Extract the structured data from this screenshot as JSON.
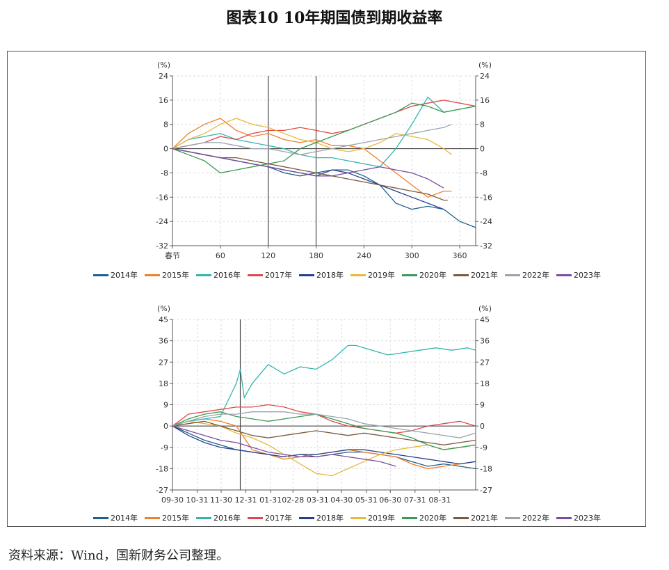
{
  "title": "图表10  10年期国债到期收益率",
  "source": "资料来源：Wind，国新财务公司整理。",
  "colors": {
    "2014年": "#1f5f8b",
    "2015年": "#f07f2a",
    "2016年": "#33b5ad",
    "2017年": "#e04848",
    "2018年": "#24408e",
    "2019年": "#e8b93a",
    "2020年": "#3a9a55",
    "2021年": "#7a5a3c",
    "2022年": "#9aa3ad",
    "2023年": "#7b4ca0"
  },
  "chart_data": [
    {
      "type": "line",
      "unit_left": "(%)",
      "unit_right": "(%)",
      "ylim": [
        -32,
        24
      ],
      "yticks": [
        "-32",
        "-24",
        "-16",
        "-8",
        "0",
        "8",
        "16",
        "24"
      ],
      "xlim": [
        0,
        380
      ],
      "xticks": [
        {
          "v": 0,
          "label": "春节"
        },
        {
          "v": 60,
          "label": "60"
        },
        {
          "v": 120,
          "label": "120"
        },
        {
          "v": 180,
          "label": "180"
        },
        {
          "v": 240,
          "label": "240"
        },
        {
          "v": 300,
          "label": "300"
        },
        {
          "v": 360,
          "label": "360"
        }
      ],
      "vlines": [
        120,
        180
      ],
      "grid": true,
      "legend": "bottom",
      "series": [
        {
          "name": "2014年",
          "x": [
            0,
            20,
            40,
            60,
            80,
            100,
            120,
            140,
            160,
            180,
            200,
            220,
            240,
            260,
            280,
            300,
            320,
            340,
            360,
            380
          ],
          "values": [
            0,
            -1,
            -2,
            -3,
            -4,
            -5,
            -6,
            -8,
            -9,
            -8,
            -7,
            -7,
            -9,
            -12,
            -18,
            -20,
            -19,
            -20,
            -24,
            -26
          ]
        },
        {
          "name": "2015年",
          "x": [
            0,
            20,
            40,
            60,
            80,
            100,
            120,
            140,
            160,
            180,
            200,
            220,
            240,
            260,
            280,
            300,
            320,
            340,
            350
          ],
          "values": [
            0,
            5,
            8,
            10,
            6,
            4,
            5,
            3,
            2,
            3,
            1,
            1,
            0,
            -4,
            -8,
            -12,
            -16,
            -14,
            -14
          ]
        },
        {
          "name": "2016年",
          "x": [
            0,
            20,
            40,
            60,
            80,
            100,
            120,
            140,
            160,
            180,
            200,
            220,
            240,
            260,
            280,
            300,
            320,
            340,
            360,
            380
          ],
          "values": [
            0,
            3,
            4,
            5,
            3,
            2,
            1,
            0,
            -2,
            -3,
            -3,
            -4,
            -5,
            -6,
            0,
            8,
            17,
            12,
            13,
            14
          ]
        },
        {
          "name": "2017年",
          "x": [
            0,
            20,
            40,
            60,
            80,
            100,
            120,
            140,
            160,
            180,
            200,
            220,
            240,
            260,
            280,
            300,
            320,
            340,
            360,
            380
          ],
          "values": [
            0,
            1,
            2,
            4,
            3,
            5,
            6,
            6,
            7,
            6,
            5,
            6,
            8,
            10,
            12,
            14,
            15,
            16,
            15,
            14
          ]
        },
        {
          "name": "2018年",
          "x": [
            0,
            20,
            40,
            60,
            80,
            100,
            120,
            140,
            160,
            180,
            200,
            220,
            240,
            260,
            280,
            300,
            320,
            340
          ],
          "values": [
            0,
            -1,
            -2,
            -3,
            -4,
            -5,
            -6,
            -7,
            -8,
            -9,
            -7,
            -8,
            -10,
            -12,
            -14,
            -16,
            -18,
            -20
          ]
        },
        {
          "name": "2019年",
          "x": [
            0,
            20,
            40,
            60,
            80,
            100,
            120,
            140,
            160,
            180,
            200,
            220,
            240,
            260,
            280,
            300,
            320,
            340,
            350
          ],
          "values": [
            0,
            3,
            5,
            8,
            10,
            8,
            7,
            5,
            3,
            2,
            0,
            -1,
            0,
            2,
            5,
            4,
            3,
            0,
            -2
          ]
        },
        {
          "name": "2020年",
          "x": [
            0,
            20,
            40,
            60,
            80,
            100,
            120,
            140,
            160,
            180,
            200,
            220,
            240,
            260,
            280,
            300,
            320,
            340,
            360,
            380
          ],
          "values": [
            0,
            -2,
            -4,
            -8,
            -7,
            -6,
            -5,
            -4,
            0,
            2,
            4,
            6,
            8,
            10,
            12,
            15,
            14,
            12,
            13,
            14
          ]
        },
        {
          "name": "2021年",
          "x": [
            0,
            20,
            40,
            60,
            80,
            100,
            120,
            140,
            160,
            180,
            200,
            220,
            240,
            260,
            280,
            300,
            320,
            340,
            345
          ],
          "values": [
            0,
            -1,
            -2,
            -3,
            -3,
            -4,
            -5,
            -6,
            -7,
            -8,
            -9,
            -10,
            -11,
            -12,
            -13,
            -14,
            -15,
            -17,
            -17
          ]
        },
        {
          "name": "2022年",
          "x": [
            0,
            20,
            40,
            60,
            80,
            100,
            120,
            140,
            160,
            180,
            200,
            220,
            240,
            260,
            280,
            300,
            320,
            340,
            350
          ],
          "values": [
            0,
            1,
            2,
            2,
            1,
            0,
            0,
            -1,
            -2,
            -1,
            0,
            1,
            2,
            3,
            4,
            5,
            6,
            7,
            8
          ]
        },
        {
          "name": "2023年",
          "x": [
            0,
            20,
            40,
            60,
            80,
            100,
            120,
            140,
            160,
            180,
            200,
            220,
            240,
            260,
            280,
            300,
            320,
            340
          ],
          "values": [
            0,
            -1,
            -2,
            -3,
            -4,
            -5,
            -6,
            -7,
            -8,
            -9,
            -9,
            -8,
            -7,
            -6,
            -7,
            -8,
            -10,
            -13
          ]
        }
      ]
    },
    {
      "type": "line",
      "unit_left": "(%)",
      "unit_right": "(%)",
      "ylim": [
        -27,
        45
      ],
      "yticks": [
        "-27",
        "-18",
        "-9",
        "0",
        "9",
        "18",
        "27",
        "36",
        "45"
      ],
      "xlim": [
        0,
        380
      ],
      "xticks": [
        {
          "v": 0,
          "label": "09-30"
        },
        {
          "v": 31,
          "label": "10-31"
        },
        {
          "v": 61,
          "label": "11-30"
        },
        {
          "v": 92,
          "label": "12-31"
        },
        {
          "v": 123,
          "label": "01-31"
        },
        {
          "v": 151,
          "label": "02-28"
        },
        {
          "v": 182,
          "label": "03-31"
        },
        {
          "v": 212,
          "label": "04-30"
        },
        {
          "v": 243,
          "label": "05-31"
        },
        {
          "v": 273,
          "label": "06-30"
        },
        {
          "v": 304,
          "label": "07-31"
        },
        {
          "v": 335,
          "label": "08-31"
        }
      ],
      "vlines": [
        85
      ],
      "grid": true,
      "legend": "bottom",
      "series": [
        {
          "name": "2014年",
          "x": [
            0,
            20,
            40,
            60,
            80,
            100,
            120,
            140,
            160,
            180,
            200,
            220,
            240,
            260,
            280,
            300,
            320,
            340,
            360,
            380
          ],
          "values": [
            0,
            -3,
            -6,
            -8,
            -10,
            -11,
            -12,
            -13,
            -12,
            -13,
            -12,
            -11,
            -11,
            -12,
            -13,
            -15,
            -17,
            -16,
            -17,
            -18
          ]
        },
        {
          "name": "2015年",
          "x": [
            0,
            20,
            40,
            60,
            80,
            100,
            120,
            140,
            160,
            180,
            200,
            220,
            240,
            260,
            280,
            300,
            320,
            340,
            360,
            380
          ],
          "values": [
            0,
            2,
            3,
            2,
            0,
            -10,
            -12,
            -14,
            -13,
            -12,
            -11,
            -10,
            -11,
            -12,
            -13,
            -16,
            -18,
            -17,
            -16,
            -15
          ]
        },
        {
          "name": "2016年",
          "x": [
            0,
            20,
            40,
            60,
            80,
            85,
            90,
            100,
            120,
            140,
            160,
            180,
            200,
            220,
            230,
            250,
            270,
            290,
            310,
            330,
            350,
            370,
            380
          ],
          "values": [
            0,
            2,
            3,
            4,
            18,
            24,
            12,
            18,
            26,
            22,
            25,
            24,
            28,
            34,
            34,
            32,
            30,
            31,
            32,
            33,
            32,
            33,
            32
          ]
        },
        {
          "name": "2017年",
          "x": [
            0,
            20,
            40,
            60,
            80,
            100,
            120,
            140,
            160,
            180,
            200,
            220,
            240,
            260,
            280,
            300,
            320,
            340,
            360,
            380
          ],
          "values": [
            0,
            5,
            6,
            7,
            8,
            8,
            9,
            8,
            6,
            5,
            2,
            0,
            -1,
            -2,
            -3,
            -2,
            0,
            1,
            2,
            0
          ]
        },
        {
          "name": "2018年",
          "x": [
            0,
            20,
            40,
            60,
            80,
            100,
            120,
            140,
            160,
            180,
            200,
            220,
            240,
            260,
            280,
            300,
            320,
            340,
            360,
            380
          ],
          "values": [
            0,
            -4,
            -7,
            -9,
            -10,
            -11,
            -12,
            -13,
            -12,
            -12,
            -11,
            -10,
            -10,
            -11,
            -12,
            -13,
            -14,
            -15,
            -16,
            -15
          ]
        },
        {
          "name": "2019年",
          "x": [
            0,
            20,
            40,
            60,
            80,
            100,
            120,
            140,
            160,
            180,
            200,
            220,
            240,
            260,
            280,
            300,
            320,
            340,
            360,
            380
          ],
          "values": [
            0,
            2,
            1,
            0,
            -3,
            -5,
            -8,
            -12,
            -16,
            -20,
            -21,
            -18,
            -15,
            -12,
            -10,
            -9,
            -8,
            -10,
            -9,
            -8
          ]
        },
        {
          "name": "2020年",
          "x": [
            0,
            20,
            40,
            60,
            80,
            100,
            120,
            140,
            160,
            180,
            200,
            220,
            240,
            260,
            280,
            300,
            320,
            340,
            360,
            380
          ],
          "values": [
            0,
            3,
            5,
            6,
            4,
            3,
            2,
            3,
            4,
            5,
            3,
            1,
            -1,
            -2,
            -3,
            -5,
            -8,
            -10,
            -9,
            -8
          ]
        },
        {
          "name": "2021年",
          "x": [
            0,
            20,
            40,
            60,
            80,
            100,
            120,
            140,
            160,
            180,
            200,
            220,
            240,
            260,
            280,
            300,
            320,
            340,
            360,
            380
          ],
          "values": [
            0,
            1,
            2,
            0,
            -2,
            -4,
            -5,
            -4,
            -3,
            -2,
            -3,
            -4,
            -3,
            -4,
            -5,
            -6,
            -7,
            -8,
            -7,
            -6
          ]
        },
        {
          "name": "2022年",
          "x": [
            0,
            20,
            40,
            60,
            80,
            100,
            120,
            140,
            160,
            180,
            200,
            220,
            240,
            260,
            280,
            300,
            320,
            340,
            360,
            380
          ],
          "values": [
            0,
            2,
            4,
            5,
            5,
            6,
            6,
            6,
            5,
            5,
            4,
            3,
            1,
            0,
            -1,
            -2,
            -3,
            -4,
            -5,
            -3
          ]
        },
        {
          "name": "2023年",
          "x": [
            0,
            20,
            40,
            60,
            80,
            100,
            120,
            140,
            160,
            180,
            200,
            220,
            240,
            260,
            280
          ],
          "values": [
            0,
            -2,
            -4,
            -6,
            -7,
            -9,
            -11,
            -12,
            -13,
            -13,
            -12,
            -13,
            -14,
            -15,
            -17
          ]
        }
      ]
    }
  ]
}
